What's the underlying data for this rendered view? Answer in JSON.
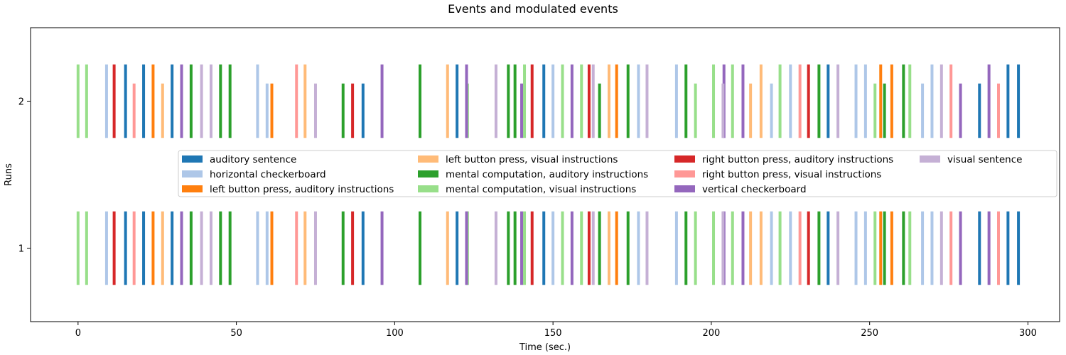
{
  "chart_data": {
    "type": "event-raster",
    "title": "Events and modulated events",
    "xlabel": "Time (sec.)",
    "ylabel": "Runs",
    "xlim": [
      -15,
      310
    ],
    "ylim": [
      0.5,
      2.5
    ],
    "xticks": [
      0,
      50,
      100,
      150,
      200,
      250,
      300
    ],
    "yticks": [
      1,
      2
    ],
    "grid": false,
    "legend_position": "center",
    "legend_columns": 4,
    "series": [
      {
        "name": "auditory sentence",
        "color": "#1f77b4",
        "onsets": [
          15.0,
          20.7,
          29.7,
          90.0,
          119.7,
          147.1,
          236.9,
          284.7,
          293.7,
          297.0
        ]
      },
      {
        "name": "horizontal checkerboard",
        "color": "#aec7e8",
        "onsets": [
          9.0,
          56.7,
          59.7,
          150.0,
          177.0,
          189.0,
          219.0,
          225.0,
          245.7,
          248.7,
          266.7,
          269.7
        ]
      },
      {
        "name": "left button press, auditory instructions",
        "color": "#ff7f0e",
        "onsets": [
          23.7,
          61.2,
          170.1,
          253.5,
          257.0
        ]
      },
      {
        "name": "left button press, visual instructions",
        "color": "#ffbb78",
        "onsets": [
          26.7,
          71.7,
          116.7,
          167.7,
          212.4,
          215.7
        ]
      },
      {
        "name": "mental computation, auditory instructions",
        "color": "#2ca02c",
        "onsets": [
          35.7,
          45.0,
          48.0,
          83.7,
          108.0,
          135.9,
          138.0,
          164.7,
          173.7,
          192.0,
          234.0,
          254.7,
          260.7
        ]
      },
      {
        "name": "mental computation, visual instructions",
        "color": "#98df8a",
        "onsets": [
          0.0,
          2.7,
          123.0,
          141.0,
          153.0,
          159.0,
          195.0,
          200.7,
          206.7,
          221.7,
          251.7,
          262.7
        ]
      },
      {
        "name": "right button press, auditory instructions",
        "color": "#d62728",
        "onsets": [
          11.4,
          86.7,
          143.4,
          161.4,
          230.7
        ]
      },
      {
        "name": "right button press, visual instructions",
        "color": "#ff9896",
        "onsets": [
          17.7,
          69.0,
          228.0,
          275.7,
          290.7
        ]
      },
      {
        "name": "vertical checkerboard",
        "color": "#9467bd",
        "onsets": [
          32.7,
          96.0,
          122.7,
          140.1,
          156.0,
          204.0,
          210.0,
          278.7,
          287.7
        ]
      },
      {
        "name": "visual sentence",
        "color": "#c5b0d5",
        "onsets": [
          39.0,
          42.0,
          75.0,
          132.0,
          162.7,
          179.7,
          203.7,
          240.0,
          272.7
        ]
      }
    ]
  }
}
